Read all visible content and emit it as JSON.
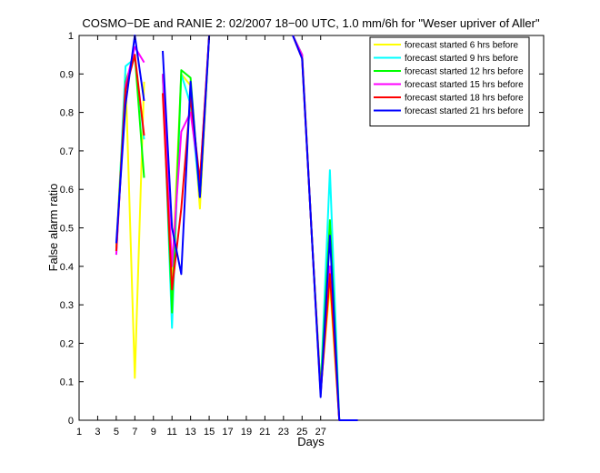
{
  "chart_data": {
    "type": "line",
    "title": "COSMO−DE and RANIE 2: 02/2007 18−00 UTC, 1.0 mm/6h for \"Weser upriver of Aller\"",
    "xlabel": "Days",
    "ylabel": "False alarm ratio",
    "xlim": [
      1,
      51
    ],
    "ylim": [
      0,
      1
    ],
    "xticks": [
      1,
      3,
      5,
      7,
      9,
      11,
      13,
      15,
      17,
      19,
      21,
      23,
      25,
      27
    ],
    "xtick_labels": [
      "1",
      "3",
      "5",
      "7",
      "9",
      "11",
      "13",
      "15",
      "17",
      "19",
      "21",
      "23",
      "25",
      "27"
    ],
    "yticks": [
      0,
      0.1,
      0.2,
      0.3,
      0.4,
      0.5,
      0.6,
      0.7,
      0.8,
      0.9,
      1
    ],
    "ytick_labels": [
      "0",
      "0.1",
      "0.2",
      "0.3",
      "0.4",
      "0.5",
      "0.6",
      "0.7",
      "0.8",
      "0.9",
      "1"
    ],
    "legend_position": "top-right",
    "series": [
      {
        "name": "forecast started 6 hrs before",
        "color": "#ffff00",
        "segments": [
          [
            [
              5,
              0.45
            ],
            [
              6,
              0.9
            ],
            [
              7,
              0.11
            ],
            [
              8,
              0.88
            ]
          ],
          [
            [
              10,
              0.9
            ],
            [
              11,
              0.37
            ],
            [
              12,
              0.9
            ],
            [
              13,
              0.87
            ],
            [
              14,
              0.55
            ],
            [
              15,
              1.0
            ]
          ],
          [
            [
              24,
              1.0
            ],
            [
              25,
              0.95
            ],
            [
              26,
              0.5
            ],
            [
              27,
              0.08
            ],
            [
              28,
              0.35
            ],
            [
              29,
              0.0
            ],
            [
              31,
              0.0
            ]
          ]
        ]
      },
      {
        "name": "forecast started 9 hrs before",
        "color": "#00ffff",
        "segments": [
          [
            [
              5,
              0.43
            ],
            [
              6,
              0.92
            ],
            [
              7,
              0.94
            ],
            [
              8,
              0.73
            ]
          ],
          [
            [
              10,
              0.9
            ],
            [
              11,
              0.24
            ],
            [
              12,
              0.9
            ],
            [
              13,
              0.82
            ],
            [
              14,
              0.58
            ],
            [
              15,
              1.0
            ]
          ],
          [
            [
              24,
              1.0
            ],
            [
              25,
              0.95
            ],
            [
              26,
              0.5
            ],
            [
              27,
              0.08
            ],
            [
              28,
              0.65
            ],
            [
              29,
              0.0
            ],
            [
              31,
              0.0
            ]
          ]
        ]
      },
      {
        "name": "forecast started 12 hrs before",
        "color": "#00ff00",
        "segments": [
          [
            [
              5,
              0.44
            ],
            [
              6,
              0.88
            ],
            [
              7,
              0.95
            ],
            [
              8,
              0.63
            ]
          ],
          [
            [
              10,
              0.9
            ],
            [
              11,
              0.28
            ],
            [
              12,
              0.91
            ],
            [
              13,
              0.89
            ],
            [
              14,
              0.58
            ],
            [
              15,
              1.0
            ]
          ],
          [
            [
              24,
              1.0
            ],
            [
              25,
              0.95
            ],
            [
              26,
              0.5
            ],
            [
              27,
              0.08
            ],
            [
              28,
              0.52
            ],
            [
              29,
              0.0
            ],
            [
              31,
              0.0
            ]
          ]
        ]
      },
      {
        "name": "forecast started 15 hrs before",
        "color": "#ff00ff",
        "segments": [
          [
            [
              5,
              0.43
            ],
            [
              6,
              0.87
            ],
            [
              7,
              0.97
            ],
            [
              8,
              0.93
            ]
          ],
          [
            [
              10,
              0.9
            ],
            [
              11,
              0.4
            ],
            [
              12,
              0.75
            ],
            [
              13,
              0.8
            ],
            [
              14,
              0.62
            ],
            [
              15,
              1.0
            ]
          ],
          [
            [
              24,
              1.0
            ],
            [
              25,
              0.95
            ],
            [
              26,
              0.5
            ],
            [
              27,
              0.07
            ],
            [
              28,
              0.4
            ],
            [
              29,
              0.0
            ],
            [
              31,
              0.0
            ]
          ]
        ]
      },
      {
        "name": "forecast started 18 hrs before",
        "color": "#ff0000",
        "segments": [
          [
            [
              5,
              0.44
            ],
            [
              6,
              0.86
            ],
            [
              7,
              0.95
            ],
            [
              8,
              0.74
            ]
          ],
          [
            [
              10,
              0.85
            ],
            [
              11,
              0.34
            ],
            [
              12,
              0.55
            ],
            [
              13,
              0.84
            ],
            [
              14,
              0.62
            ],
            [
              15,
              1.0
            ]
          ],
          [
            [
              24,
              1.0
            ],
            [
              25,
              0.94
            ],
            [
              26,
              0.5
            ],
            [
              27,
              0.07
            ],
            [
              28,
              0.38
            ],
            [
              29,
              0.0
            ],
            [
              31,
              0.0
            ]
          ]
        ]
      },
      {
        "name": "forecast started 21 hrs before",
        "color": "#0000ff",
        "segments": [
          [
            [
              5,
              0.46
            ],
            [
              6,
              0.82
            ],
            [
              7,
              1.0
            ],
            [
              8,
              0.83
            ]
          ],
          [
            [
              10,
              0.96
            ],
            [
              11,
              0.5
            ],
            [
              12,
              0.38
            ],
            [
              13,
              0.88
            ],
            [
              14,
              0.58
            ],
            [
              15,
              1.0
            ]
          ],
          [
            [
              24,
              1.0
            ],
            [
              25,
              0.94
            ],
            [
              26,
              0.5
            ],
            [
              27,
              0.06
            ],
            [
              28,
              0.48
            ],
            [
              29,
              0.0
            ],
            [
              31,
              0.0
            ]
          ]
        ]
      }
    ]
  }
}
